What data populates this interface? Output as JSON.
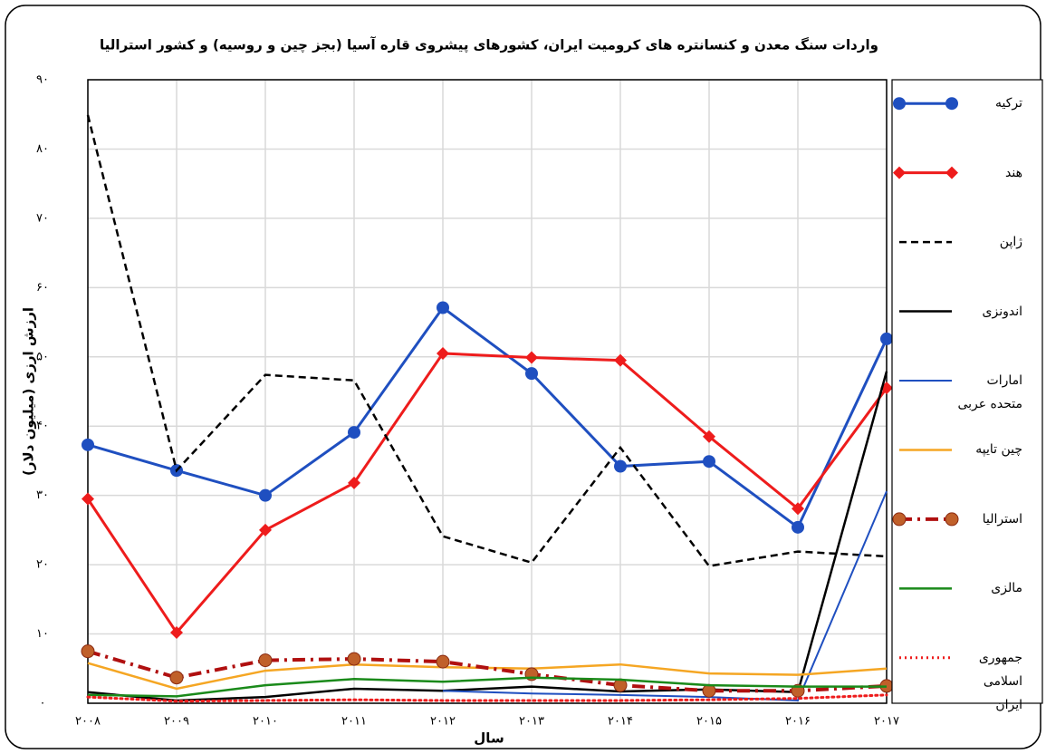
{
  "chart_data": {
    "type": "line",
    "title": "واردات سنگ معدن و کنسانتره های کرومیت ایران، کشورهای پیشروی قاره آسیا (بجز چین و روسیه) و کشور استرالیا",
    "x_label": "سال",
    "y_label": "ارزش ارزی (میلیون دلار)",
    "categories": [
      "۲۰۰۸",
      "۲۰۰۹",
      "۲۰۱۰",
      "۲۰۱۱",
      "۲۰۱۲",
      "۲۰۱۳",
      "۲۰۱۴",
      "۲۰۱۵",
      "۲۰۱۶",
      "۲۰۱۷"
    ],
    "ylim": [
      0,
      90
    ],
    "yticks": [
      {
        "value": 0,
        "label": "۰"
      },
      {
        "value": 10,
        "label": "۱۰"
      },
      {
        "value": 20,
        "label": "۲۰"
      },
      {
        "value": 30,
        "label": "۳۰"
      },
      {
        "value": 40,
        "label": "۴۰"
      },
      {
        "value": 50,
        "label": "۵۰"
      },
      {
        "value": 60,
        "label": "۶۰"
      },
      {
        "value": 70,
        "label": "۷۰"
      },
      {
        "value": 80,
        "label": "۸۰"
      },
      {
        "value": 90,
        "label": "۹۰"
      }
    ],
    "grid": true,
    "legend": "right",
    "series": [
      {
        "name": "ترکیه",
        "color": "#1f4fc0",
        "marker": "circle",
        "dash": "solid",
        "width": 3,
        "values": [
          37.3,
          33.6,
          30,
          39.1,
          57.1,
          47.6,
          34.2,
          34.9,
          25.4,
          52.6
        ]
      },
      {
        "name": "هند",
        "color": "#ee1c1c",
        "marker": "diamond",
        "dash": "solid",
        "width": 3,
        "values": [
          29.5,
          10.2,
          25,
          31.8,
          50.5,
          49.9,
          49.5,
          38.5,
          28.1,
          45.5
        ]
      },
      {
        "name": "ژاپن",
        "color": "#000000",
        "marker": "none",
        "dash": "dashed",
        "width": 2.5,
        "values": [
          84.9,
          33.6,
          47.4,
          46.6,
          24.1,
          20.3,
          36.9,
          19.8,
          21.9,
          21.2
        ]
      },
      {
        "name": "اندونزی",
        "color": "#000000",
        "marker": "none",
        "dash": "solid",
        "width": 2.5,
        "values": [
          1.6,
          0.4,
          0.9,
          2.1,
          1.8,
          2.4,
          1.7,
          2,
          1.6,
          47.9
        ]
      },
      {
        "name": "امارات متحده عربی",
        "color": "#1f4fc0",
        "marker": "none",
        "dash": "solid",
        "width": 2,
        "values": [
          null,
          null,
          null,
          null,
          1.8,
          1.4,
          1.2,
          0.9,
          0.4,
          30.6
        ]
      },
      {
        "name": "چین تایپه",
        "color": "#f5a623",
        "marker": "none",
        "dash": "solid",
        "width": 2.5,
        "values": [
          5.8,
          2.1,
          4.7,
          5.6,
          5.2,
          5,
          5.6,
          4.3,
          4.1,
          5
        ]
      },
      {
        "name": "استرالیا",
        "color": "#b01010",
        "marker": "circle-brown",
        "dash": "dashdot",
        "width": 4,
        "values": [
          7.5,
          3.7,
          6.2,
          6.4,
          6,
          4.2,
          2.6,
          1.8,
          1.8,
          2.5
        ]
      },
      {
        "name": "مالزی",
        "color": "#1a8a1a",
        "marker": "none",
        "dash": "solid",
        "width": 2.5,
        "values": [
          1.2,
          1,
          2.6,
          3.5,
          3.1,
          3.7,
          3.4,
          2.6,
          2.4,
          2.4
        ]
      },
      {
        "name": "جمهوری اسلامی ایران",
        "color": "#ee1c1c",
        "marker": "none",
        "dash": "dotted",
        "width": 3,
        "values": [
          0.9,
          0.3,
          0.4,
          0.5,
          0.4,
          0.4,
          0.4,
          0.5,
          0.7,
          1.2
        ]
      }
    ]
  }
}
